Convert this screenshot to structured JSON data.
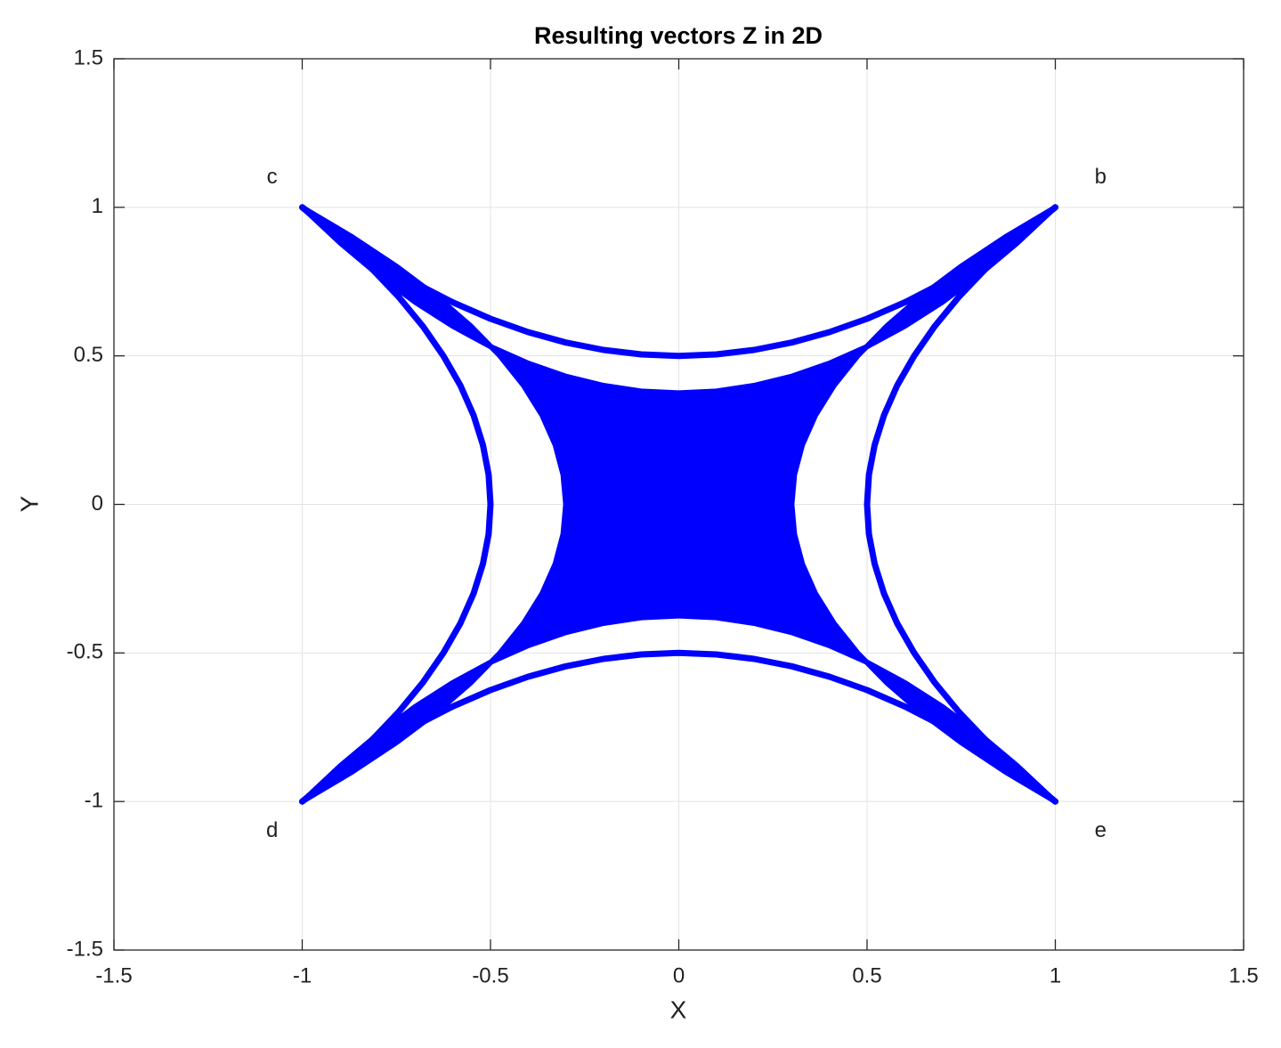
{
  "chart_data": {
    "type": "scatter",
    "title": "Resulting vectors Z in 2D",
    "xlabel": "X",
    "ylabel": "Y",
    "xlim": [
      -1.5,
      1.5
    ],
    "ylim": [
      -1.5,
      1.5
    ],
    "xticks": [
      -1.5,
      -1,
      -0.5,
      0,
      0.5,
      1,
      1.5
    ],
    "yticks": [
      -1.5,
      -1,
      -0.5,
      0,
      0.5,
      1,
      1.5
    ],
    "grid": true,
    "color": "#0000ff",
    "series": [
      {
        "style": "line",
        "x": [
          -1,
          -0.9,
          -0.8,
          -0.7,
          -0.6,
          -0.5,
          -0.4,
          -0.3,
          -0.2,
          -0.1,
          0,
          0.1,
          0.2,
          0.3,
          0.4,
          0.5,
          0.6,
          0.7,
          0.8,
          0.9,
          1
        ],
        "y": [
          1,
          0.905,
          0.82,
          0.745,
          0.68,
          0.625,
          0.58,
          0.545,
          0.52,
          0.505,
          0.5,
          0.505,
          0.52,
          0.545,
          0.58,
          0.625,
          0.68,
          0.745,
          0.82,
          0.905,
          1
        ]
      },
      {
        "style": "line",
        "x": [
          -1,
          -0.9,
          -0.8,
          -0.7,
          -0.6,
          -0.5,
          -0.4,
          -0.3,
          -0.2,
          -0.1,
          0,
          0.1,
          0.2,
          0.3,
          0.4,
          0.5,
          0.6,
          0.7,
          0.8,
          0.9,
          1
        ],
        "y": [
          -1,
          -0.905,
          -0.82,
          -0.745,
          -0.68,
          -0.625,
          -0.58,
          -0.545,
          -0.52,
          -0.505,
          -0.5,
          -0.505,
          -0.52,
          -0.545,
          -0.58,
          -0.625,
          -0.68,
          -0.745,
          -0.82,
          -0.905,
          -1
        ]
      },
      {
        "style": "line",
        "x": [
          1,
          0.905,
          0.82,
          0.745,
          0.68,
          0.625,
          0.58,
          0.545,
          0.52,
          0.505,
          0.5,
          0.505,
          0.52,
          0.545,
          0.58,
          0.625,
          0.68,
          0.745,
          0.82,
          0.905,
          1
        ],
        "y": [
          -1,
          -0.9,
          -0.8,
          -0.7,
          -0.6,
          -0.5,
          -0.4,
          -0.3,
          -0.2,
          -0.1,
          0,
          0.1,
          0.2,
          0.3,
          0.4,
          0.5,
          0.6,
          0.7,
          0.8,
          0.9,
          1
        ]
      },
      {
        "style": "line",
        "x": [
          -1,
          -0.905,
          -0.82,
          -0.745,
          -0.68,
          -0.625,
          -0.58,
          -0.545,
          -0.52,
          -0.505,
          -0.5,
          -0.505,
          -0.52,
          -0.545,
          -0.58,
          -0.625,
          -0.68,
          -0.745,
          -0.82,
          -0.905,
          -1
        ],
        "y": [
          -1,
          -0.9,
          -0.8,
          -0.7,
          -0.6,
          -0.5,
          -0.4,
          -0.3,
          -0.2,
          -0.1,
          0,
          0.1,
          0.2,
          0.3,
          0.4,
          0.5,
          0.6,
          0.7,
          0.8,
          0.9,
          1
        ]
      },
      {
        "style": "area",
        "x": [
          -1,
          -0.9,
          -0.8,
          -0.7,
          -0.6,
          -0.5,
          -0.4,
          -0.3,
          -0.2,
          -0.1,
          0,
          0.1,
          0.2,
          0.3,
          0.4,
          0.5,
          0.6,
          0.7,
          0.8,
          0.9,
          1,
          0.867,
          0.748,
          0.643,
          0.552,
          0.475,
          0.412,
          0.363,
          0.328,
          0.307,
          0.3,
          0.307,
          0.328,
          0.363,
          0.412,
          0.475,
          0.552,
          0.643,
          0.748,
          0.867,
          1,
          0.9,
          0.8,
          0.7,
          0.6,
          0.5,
          0.4,
          0.3,
          0.2,
          0.1,
          0,
          -0.1,
          -0.2,
          -0.3,
          -0.4,
          -0.5,
          -0.6,
          -0.7,
          -0.8,
          -0.9,
          -1,
          -0.867,
          -0.748,
          -0.643,
          -0.552,
          -0.475,
          -0.412,
          -0.363,
          -0.328,
          -0.307,
          -0.3,
          -0.307,
          -0.328,
          -0.363,
          -0.412,
          -0.475,
          -0.552,
          -0.643,
          -0.748,
          -0.867
        ],
        "y": [
          1,
          0.881,
          0.775,
          0.681,
          0.6,
          0.531,
          0.475,
          0.431,
          0.4,
          0.381,
          0.375,
          0.381,
          0.4,
          0.431,
          0.475,
          0.531,
          0.6,
          0.681,
          0.775,
          0.881,
          1,
          0.9,
          0.8,
          0.7,
          0.6,
          0.5,
          0.4,
          0.3,
          0.2,
          0.1,
          0,
          -0.1,
          -0.2,
          -0.3,
          -0.4,
          -0.5,
          -0.6,
          -0.7,
          -0.8,
          -0.9,
          -1,
          -0.881,
          -0.775,
          -0.681,
          -0.6,
          -0.531,
          -0.475,
          -0.431,
          -0.4,
          -0.381,
          -0.375,
          -0.381,
          -0.4,
          -0.431,
          -0.475,
          -0.531,
          -0.6,
          -0.681,
          -0.775,
          -0.881,
          -1,
          -0.9,
          -0.8,
          -0.7,
          -0.6,
          -0.5,
          -0.4,
          -0.3,
          -0.2,
          -0.1,
          0,
          0.1,
          0.2,
          0.3,
          0.4,
          0.5,
          0.6,
          0.7,
          0.8,
          0.9
        ]
      }
    ],
    "annotations": [
      {
        "text": "c",
        "x": -1.08,
        "y": 1.1
      },
      {
        "text": "b",
        "x": 1.12,
        "y": 1.1
      },
      {
        "text": "d",
        "x": -1.08,
        "y": -1.1
      },
      {
        "text": "e",
        "x": 1.12,
        "y": -1.1
      }
    ]
  }
}
